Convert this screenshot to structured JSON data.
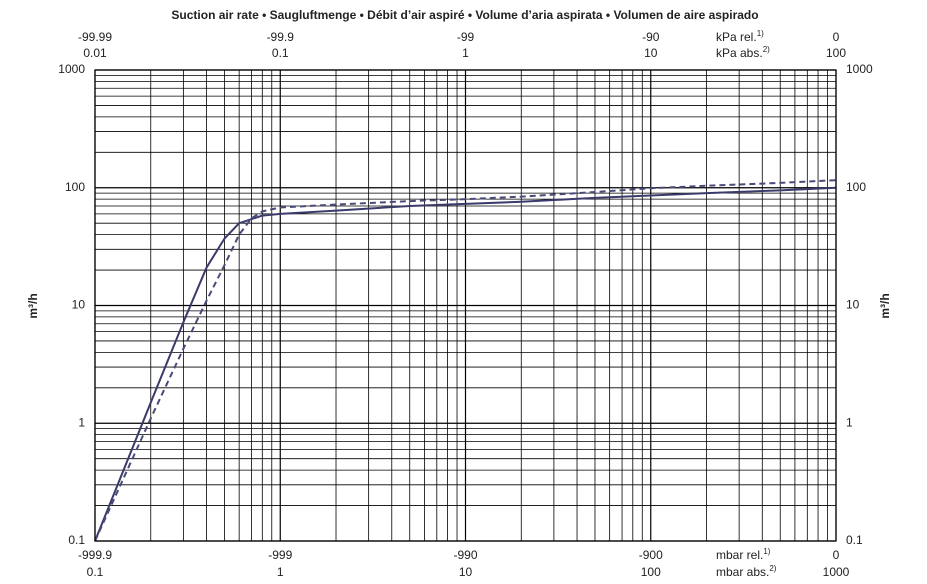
{
  "chart_data": {
    "type": "line",
    "title": "Suction air rate  •  Saugluftmenge  •  Débit d’air aspiré  •  Volume d’aria aspirata  •  Volumen de aire aspirado",
    "y_label": "m³/h",
    "xlog": true,
    "ylog": true,
    "grid": true,
    "xlim": [
      0.1,
      1000
    ],
    "ylim": [
      0.1,
      1000
    ],
    "xticks": [
      0.1,
      1,
      10,
      100,
      1000
    ],
    "yticks": [
      0.1,
      1,
      10,
      100,
      1000
    ],
    "xticks_mbar_rel": [
      -999.9,
      -999,
      -990,
      -900,
      0
    ],
    "xticks_kpa_rel": [
      -99.99,
      -99.9,
      -99,
      -90,
      0
    ],
    "xticks_kpa_abs": [
      0.01,
      0.1,
      1,
      10,
      100
    ],
    "unit_kpa_rel": {
      "text": "kPa rel.",
      "note": "1)"
    },
    "unit_kpa_abs": {
      "text": "kPa abs.",
      "note": "2)"
    },
    "unit_mbar_rel": {
      "text": "mbar rel.",
      "note": "1)"
    },
    "unit_mbar_abs": {
      "text": "mbar abs.",
      "note": "2)"
    },
    "series": [
      {
        "color": "#3b3b6b",
        "style": "solid",
        "x": [
          0.1,
          0.2,
          0.3,
          0.4,
          0.5,
          0.6,
          0.8,
          1,
          2,
          5,
          10,
          20,
          50,
          100,
          200,
          500,
          1000
        ],
        "values": [
          0.1,
          1.5,
          7.2,
          21,
          37,
          50,
          58,
          60,
          64,
          70,
          73,
          76,
          82,
          86,
          90,
          95,
          100
        ]
      },
      {
        "color": "#4a4a7a",
        "style": "dashed",
        "x": [
          0.1,
          0.2,
          0.3,
          0.4,
          0.5,
          0.6,
          0.7,
          0.8,
          1,
          2,
          5,
          10,
          20,
          50,
          100,
          200,
          500,
          1000
        ],
        "values": [
          0.1,
          1.1,
          4.3,
          11,
          22,
          40,
          55,
          63,
          68,
          72,
          77,
          80,
          84,
          92,
          99,
          104,
          110,
          116
        ]
      }
    ]
  }
}
